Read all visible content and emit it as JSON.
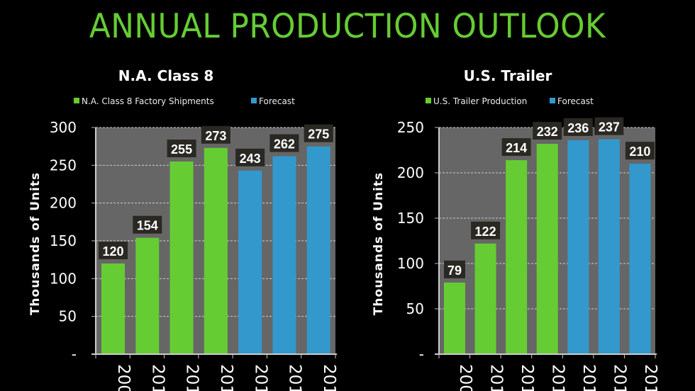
{
  "page": {
    "title": "ANNUAL PRODUCTION OUTLOOK",
    "title_color": "#66cc33"
  },
  "colors": {
    "actual": "#66cc33",
    "forecast": "#3399cc",
    "plot_bg": "#666666",
    "label_bg": "#2a2822"
  },
  "chart_data": [
    {
      "type": "bar",
      "title": "N.A. Class 8",
      "ylabel": "Thousands  of  Units",
      "xlabel": "",
      "ylim": [
        0,
        300
      ],
      "yticks": [
        0,
        50,
        100,
        150,
        200,
        250,
        300
      ],
      "ytick_labels": [
        "-",
        "50",
        "100",
        "150",
        "200",
        "250",
        "300"
      ],
      "grid": true,
      "legend_position": "top",
      "categories": [
        "200",
        "201",
        "201",
        "201",
        "201",
        "201",
        "201"
      ],
      "series": [
        {
          "name": "N.A. Class 8 Factory Shipments",
          "color": "#66cc33",
          "values": [
            120,
            154,
            255,
            273,
            null,
            null,
            null
          ]
        },
        {
          "name": "Forecast",
          "color": "#3399cc",
          "values": [
            null,
            null,
            null,
            null,
            243,
            262,
            275
          ]
        }
      ],
      "values": [
        120,
        154,
        255,
        273,
        243,
        262,
        275
      ]
    },
    {
      "type": "bar",
      "title": "U.S. Trailer",
      "ylabel": "Thousands  of  Units",
      "xlabel": "",
      "ylim": [
        0,
        250
      ],
      "yticks": [
        0,
        50,
        100,
        150,
        200,
        250
      ],
      "ytick_labels": [
        "-",
        "50",
        "100",
        "150",
        "200",
        "250"
      ],
      "grid": true,
      "legend_position": "top",
      "categories": [
        "200",
        "201",
        "201",
        "201",
        "201",
        "201",
        "201"
      ],
      "series": [
        {
          "name": "U.S. Trailer Production",
          "color": "#66cc33",
          "values": [
            79,
            122,
            214,
            232,
            null,
            null,
            null
          ]
        },
        {
          "name": "Forecast",
          "color": "#3399cc",
          "values": [
            null,
            null,
            null,
            null,
            236,
            237,
            210
          ]
        }
      ],
      "values": [
        79,
        122,
        214,
        232,
        236,
        237,
        210
      ]
    }
  ]
}
